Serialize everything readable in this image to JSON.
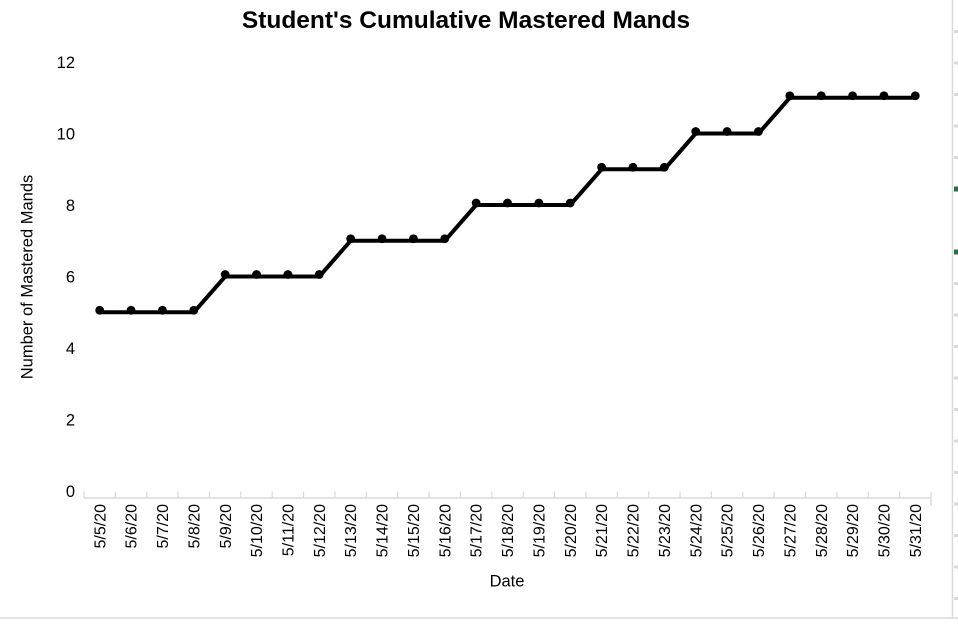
{
  "chart_data": {
    "type": "line",
    "title": "Student's Cumulative Mastered Mands",
    "xlabel": "Date",
    "ylabel": "Number of Mastered Mands",
    "categories": [
      "5/5/20",
      "5/6/20",
      "5/7/20",
      "5/8/20",
      "5/9/20",
      "5/10/20",
      "5/11/20",
      "5/12/20",
      "5/13/20",
      "5/14/20",
      "5/15/20",
      "5/16/20",
      "5/17/20",
      "5/18/20",
      "5/19/20",
      "5/20/20",
      "5/21/20",
      "5/22/20",
      "5/23/20",
      "5/24/20",
      "5/25/20",
      "5/26/20",
      "5/27/20",
      "5/28/20",
      "5/29/20",
      "5/30/20",
      "5/31/20"
    ],
    "values": [
      5,
      5,
      5,
      5,
      6,
      6,
      6,
      6,
      7,
      7,
      7,
      7,
      8,
      8,
      8,
      8,
      9,
      9,
      9,
      10,
      10,
      10,
      11,
      11,
      11,
      11,
      11
    ],
    "ylim": [
      0,
      12
    ],
    "yticks": [
      0,
      2,
      4,
      6,
      8,
      10,
      12
    ],
    "x_tick_rotation": 90,
    "grid": false,
    "legend": "none",
    "line_color": "#000000",
    "marker": "filled-circle",
    "axis_color": "#d9d9d9"
  },
  "spreadsheet": {
    "gridline_color": "#d9d9d9",
    "accent_mark_color": "#217346"
  }
}
